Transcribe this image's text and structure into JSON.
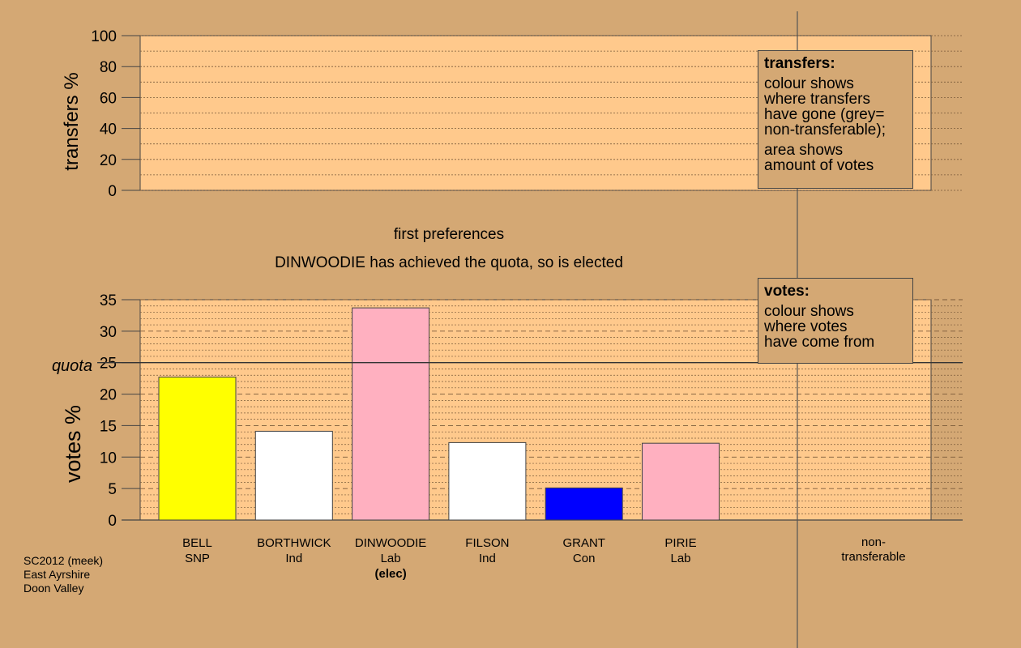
{
  "chart_data": [
    {
      "type": "area",
      "title": "",
      "ylabel": "transfers %",
      "ylim": [
        0,
        100
      ],
      "yticks": [
        0,
        20,
        40,
        60,
        80,
        100
      ],
      "series": [],
      "legend": {
        "title": "transfers:",
        "lines": [
          "colour shows",
          "where transfers",
          "have gone (grey=",
          "non-transferable);"
        ],
        "lines2": [
          "area shows",
          "amount of votes"
        ]
      }
    },
    {
      "type": "bar",
      "subtitle": "first preferences",
      "title": "DINWOODIE has achieved the quota, so is elected",
      "ylabel": "votes %",
      "ylim": [
        0,
        35
      ],
      "yticks": [
        0,
        5,
        10,
        15,
        20,
        25,
        30,
        35
      ],
      "quota": 25,
      "quota_label": "quota",
      "categories": [
        "BELL",
        "BORTHWICK",
        "DINWOODIE",
        "FILSON",
        "GRANT",
        "PIRIE"
      ],
      "parties": [
        "SNP",
        "Ind",
        "Lab",
        "Ind",
        "Con",
        "Lab"
      ],
      "notes": [
        "",
        "",
        "(elec)",
        "",
        "",
        ""
      ],
      "values": [
        22.7,
        14.1,
        33.7,
        12.3,
        5.1,
        12.2
      ],
      "colors": [
        "#ffff00",
        "#ffffff",
        "#ffb0c0",
        "#ffffff",
        "#0000ff",
        "#ffb0c0"
      ],
      "extra_category": [
        "non-",
        "transferable"
      ],
      "legend": {
        "title": "votes:",
        "lines": [
          "colour shows",
          "where votes",
          "have come from"
        ]
      }
    }
  ],
  "source": [
    "SC2012 (meek)",
    "East Ayrshire",
    "Doon Valley"
  ]
}
